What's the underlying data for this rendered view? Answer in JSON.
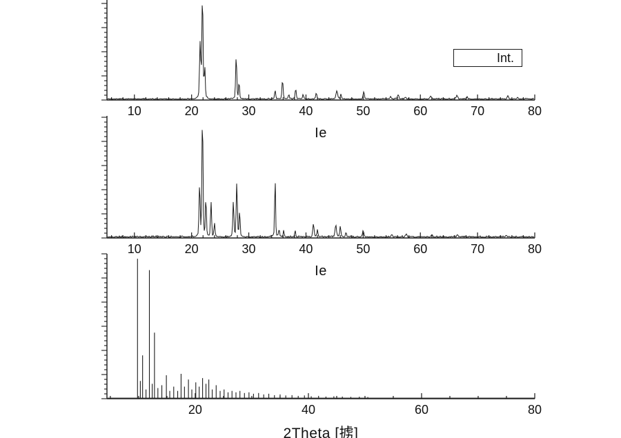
{
  "legend": {
    "label": "Int."
  },
  "figure": {
    "background": "#ffffff",
    "line_color": "#1a1a1a"
  },
  "chart_data": [
    {
      "type": "line",
      "title": "",
      "xlabel": "Ie",
      "ylabel": "",
      "x_range": [
        5.2,
        80
      ],
      "x_ticks": [
        10,
        20,
        30,
        40,
        50,
        60,
        70,
        80
      ],
      "x_minor_step": 2,
      "grid": false,
      "noise_amplitude": 0.013,
      "peaks": [
        {
          "x": 21.5,
          "i": 0.55,
          "w": 0.15
        },
        {
          "x": 21.9,
          "i": 1.02,
          "w": 0.14
        },
        {
          "x": 22.3,
          "i": 0.3,
          "w": 0.12
        },
        {
          "x": 27.8,
          "i": 0.42,
          "w": 0.14
        },
        {
          "x": 28.3,
          "i": 0.16,
          "w": 0.12
        },
        {
          "x": 34.6,
          "i": 0.08,
          "w": 0.14
        },
        {
          "x": 35.9,
          "i": 0.19,
          "w": 0.14
        },
        {
          "x": 37.0,
          "i": 0.05,
          "w": 0.12
        },
        {
          "x": 38.2,
          "i": 0.1,
          "w": 0.14
        },
        {
          "x": 39.5,
          "i": 0.04,
          "w": 0.12
        },
        {
          "x": 41.8,
          "i": 0.06,
          "w": 0.15
        },
        {
          "x": 45.4,
          "i": 0.08,
          "w": 0.18
        },
        {
          "x": 46.1,
          "i": 0.05,
          "w": 0.12
        },
        {
          "x": 50.1,
          "i": 0.07,
          "w": 0.15
        },
        {
          "x": 54.8,
          "i": 0.025,
          "w": 0.15
        },
        {
          "x": 56.1,
          "i": 0.04,
          "w": 0.18
        },
        {
          "x": 57.4,
          "i": 0.02,
          "w": 0.15
        },
        {
          "x": 61.8,
          "i": 0.03,
          "w": 0.18
        },
        {
          "x": 66.4,
          "i": 0.035,
          "w": 0.18
        },
        {
          "x": 68.2,
          "i": 0.02,
          "w": 0.15
        },
        {
          "x": 75.3,
          "i": 0.03,
          "w": 0.18
        },
        {
          "x": 77.0,
          "i": 0.015,
          "w": 0.15
        }
      ]
    },
    {
      "type": "line",
      "title": "",
      "xlabel": "Ie",
      "ylabel": "",
      "x_range": [
        5.2,
        80
      ],
      "x_ticks": [
        10,
        20,
        30,
        40,
        50,
        60,
        70,
        80
      ],
      "x_minor_step": 2,
      "grid": false,
      "noise_amplitude": 0.013,
      "peaks": [
        {
          "x": 21.4,
          "i": 0.4,
          "w": 0.14
        },
        {
          "x": 21.9,
          "i": 0.97,
          "w": 0.13
        },
        {
          "x": 22.5,
          "i": 0.3,
          "w": 0.12
        },
        {
          "x": 23.4,
          "i": 0.28,
          "w": 0.13
        },
        {
          "x": 24.0,
          "i": 0.1,
          "w": 0.12
        },
        {
          "x": 27.3,
          "i": 0.28,
          "w": 0.13
        },
        {
          "x": 27.9,
          "i": 0.42,
          "w": 0.14
        },
        {
          "x": 28.4,
          "i": 0.2,
          "w": 0.12
        },
        {
          "x": 34.6,
          "i": 0.48,
          "w": 0.11
        },
        {
          "x": 35.3,
          "i": 0.06,
          "w": 0.12
        },
        {
          "x": 36.1,
          "i": 0.05,
          "w": 0.12
        },
        {
          "x": 38.1,
          "i": 0.05,
          "w": 0.12
        },
        {
          "x": 41.3,
          "i": 0.1,
          "w": 0.16
        },
        {
          "x": 42.0,
          "i": 0.06,
          "w": 0.12
        },
        {
          "x": 45.2,
          "i": 0.09,
          "w": 0.18
        },
        {
          "x": 46.0,
          "i": 0.08,
          "w": 0.14
        },
        {
          "x": 47.0,
          "i": 0.04,
          "w": 0.12
        },
        {
          "x": 50.0,
          "i": 0.05,
          "w": 0.14
        },
        {
          "x": 55.0,
          "i": 0.02,
          "w": 0.15
        },
        {
          "x": 57.5,
          "i": 0.02,
          "w": 0.15
        },
        {
          "x": 62.0,
          "i": 0.02,
          "w": 0.15
        },
        {
          "x": 66.5,
          "i": 0.02,
          "w": 0.15
        },
        {
          "x": 75.0,
          "i": 0.015,
          "w": 0.15
        }
      ]
    },
    {
      "type": "bar",
      "title": "",
      "xlabel": "2Theta [掳]",
      "ylabel": "",
      "x_range": [
        4.4,
        80
      ],
      "x_ticks": [
        20,
        40,
        60,
        80
      ],
      "x_minor_step": 5,
      "grid": false,
      "noise_amplitude": 0.004,
      "sticks": [
        {
          "x": 9.8,
          "i": 0.98
        },
        {
          "x": 10.3,
          "i": 0.12
        },
        {
          "x": 10.7,
          "i": 0.3
        },
        {
          "x": 11.3,
          "i": 0.06
        },
        {
          "x": 11.9,
          "i": 0.9
        },
        {
          "x": 12.4,
          "i": 0.1
        },
        {
          "x": 12.8,
          "i": 0.46
        },
        {
          "x": 13.4,
          "i": 0.07
        },
        {
          "x": 14.1,
          "i": 0.09
        },
        {
          "x": 14.9,
          "i": 0.16
        },
        {
          "x": 15.5,
          "i": 0.05
        },
        {
          "x": 16.2,
          "i": 0.08
        },
        {
          "x": 16.9,
          "i": 0.05
        },
        {
          "x": 17.5,
          "i": 0.17
        },
        {
          "x": 18.1,
          "i": 0.08
        },
        {
          "x": 18.8,
          "i": 0.13
        },
        {
          "x": 19.4,
          "i": 0.06
        },
        {
          "x": 20.1,
          "i": 0.11
        },
        {
          "x": 20.7,
          "i": 0.08
        },
        {
          "x": 21.3,
          "i": 0.14
        },
        {
          "x": 21.9,
          "i": 0.1
        },
        {
          "x": 22.4,
          "i": 0.13
        },
        {
          "x": 23.0,
          "i": 0.06
        },
        {
          "x": 23.7,
          "i": 0.09
        },
        {
          "x": 24.4,
          "i": 0.05
        },
        {
          "x": 25.1,
          "i": 0.06
        },
        {
          "x": 25.8,
          "i": 0.04
        },
        {
          "x": 26.5,
          "i": 0.05
        },
        {
          "x": 27.2,
          "i": 0.04
        },
        {
          "x": 27.9,
          "i": 0.05
        },
        {
          "x": 28.7,
          "i": 0.035
        },
        {
          "x": 29.5,
          "i": 0.04
        },
        {
          "x": 30.3,
          "i": 0.03
        },
        {
          "x": 31.2,
          "i": 0.035
        },
        {
          "x": 32.1,
          "i": 0.025
        },
        {
          "x": 33.0,
          "i": 0.03
        },
        {
          "x": 34.0,
          "i": 0.02
        },
        {
          "x": 35.0,
          "i": 0.025
        },
        {
          "x": 36.0,
          "i": 0.018
        },
        {
          "x": 37.1,
          "i": 0.02
        },
        {
          "x": 38.2,
          "i": 0.015
        },
        {
          "x": 39.3,
          "i": 0.018
        },
        {
          "x": 40.5,
          "i": 0.012
        },
        {
          "x": 41.8,
          "i": 0.015
        },
        {
          "x": 43.1,
          "i": 0.01
        },
        {
          "x": 44.5,
          "i": 0.012
        },
        {
          "x": 46.0,
          "i": 0.01
        },
        {
          "x": 47.5,
          "i": 0.008
        },
        {
          "x": 49.0,
          "i": 0.009
        },
        {
          "x": 50.5,
          "i": 0.007
        }
      ]
    }
  ]
}
